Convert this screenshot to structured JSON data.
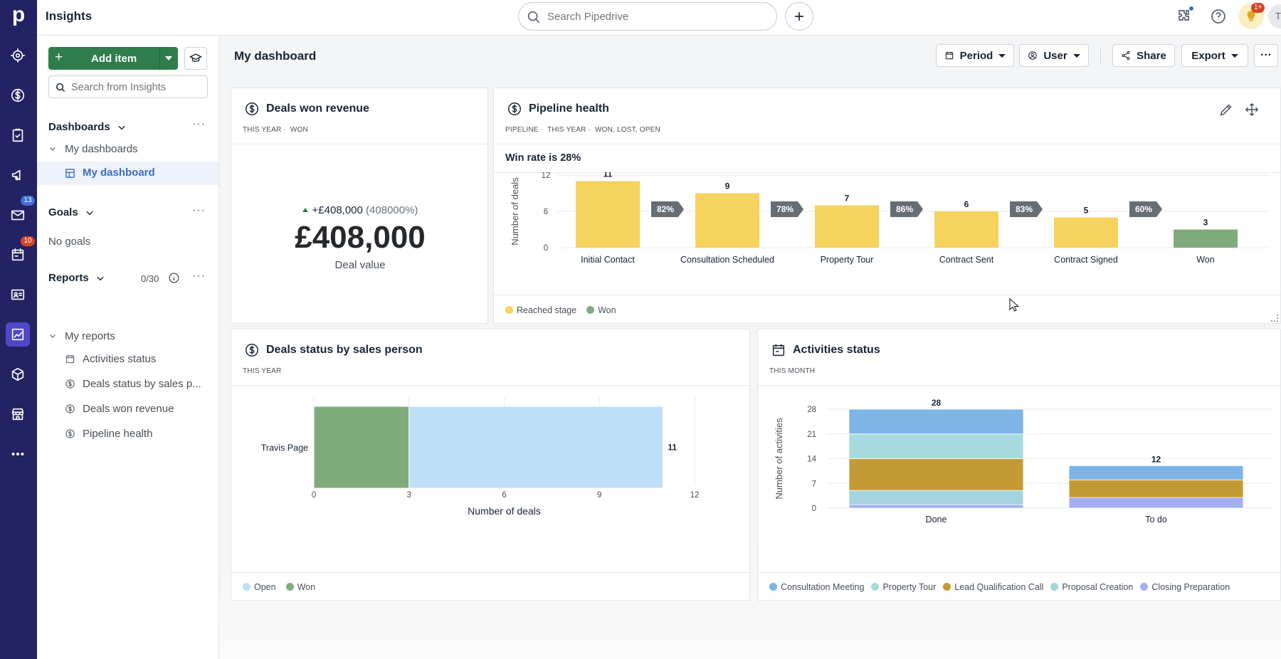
{
  "app": {
    "title": "Insights"
  },
  "rail": {
    "mail_badge": "13",
    "calendar_badge": "10"
  },
  "topbar": {
    "search_placeholder": "Search Pipedrive",
    "notif_badge": "1+",
    "avatar_initials": "TP"
  },
  "sidebar": {
    "add_item": "Add item",
    "search_placeholder": "Search from Insights",
    "dashboards_label": "Dashboards",
    "my_dashboards": "My dashboards",
    "my_dashboard": "My dashboard",
    "goals_label": "Goals",
    "no_goals": "No goals",
    "reports_label": "Reports",
    "reports_count": "0/30",
    "my_reports": "My reports",
    "reports": [
      "Activities status",
      "Deals status by sales p...",
      "Deals won revenue",
      "Pipeline health"
    ]
  },
  "header": {
    "title": "My dashboard",
    "period": "Period",
    "user": "User",
    "share": "Share",
    "export": "Export"
  },
  "deals_won": {
    "title": "Deals won revenue",
    "filter1": "THIS YEAR",
    "filter2": "WON",
    "change": "+£408,000",
    "change_pct": "(408000%)",
    "value": "£408,000",
    "caption": "Deal value"
  },
  "pipeline": {
    "title": "Pipeline health",
    "filters": [
      "PIPELINE",
      "THIS YEAR",
      "WON, LOST, OPEN"
    ],
    "win_rate": "Win rate is 28%",
    "legend": [
      "Reached stage",
      "Won"
    ]
  },
  "deals_status": {
    "title": "Deals status by sales person",
    "filter": "THIS YEAR",
    "legend": [
      "Open",
      "Won"
    ]
  },
  "activities": {
    "title": "Activities status",
    "filter": "THIS MONTH",
    "legend": [
      "Consultation Meeting",
      "Property Tour",
      "Lead Qualification Call",
      "Proposal Creation",
      "Closing Preparation"
    ]
  },
  "colors": {
    "rail": "#232262",
    "accent_green": "#2f7d4b",
    "reached": "#f5d35e",
    "won": "#7fab7d",
    "open": "#bfdff7",
    "active_blue": "#3d6cc6"
  },
  "chart_data": [
    {
      "type": "bar",
      "id": "pipeline",
      "ylabel": "Number of deals",
      "ylim": [
        0,
        12
      ],
      "yticks": [
        0,
        6,
        12
      ],
      "categories": [
        "Initial Contact",
        "Consultation Scheduled",
        "Property Tour",
        "Contract Sent",
        "Contract Signed",
        "Won"
      ],
      "values": [
        11,
        9,
        7,
        6,
        5,
        3
      ],
      "conversion_labels": [
        "82%",
        "78%",
        "86%",
        "83%",
        "60%"
      ],
      "series": [
        {
          "name": "Reached stage"
        },
        {
          "name": "Won"
        }
      ]
    },
    {
      "type": "bar",
      "id": "deals_status",
      "orientation": "horizontal",
      "xlabel": "Number of deals",
      "xlim": [
        0,
        12
      ],
      "xticks": [
        0,
        3,
        6,
        9,
        12
      ],
      "categories": [
        "Travis Page"
      ],
      "total_labels": [
        11
      ],
      "series": [
        {
          "name": "Won",
          "values": [
            3
          ]
        },
        {
          "name": "Open",
          "values": [
            8
          ]
        }
      ]
    },
    {
      "type": "bar",
      "id": "activities",
      "stacked": true,
      "ylabel": "Number of activities",
      "ylim": [
        0,
        28
      ],
      "yticks": [
        0,
        7,
        14,
        21,
        28
      ],
      "categories": [
        "Done",
        "To do"
      ],
      "totals": [
        28,
        12
      ],
      "series": [
        {
          "name": "Closing Preparation",
          "values": [
            1,
            3
          ]
        },
        {
          "name": "Proposal Creation",
          "values": [
            4,
            0
          ]
        },
        {
          "name": "Lead Qualification Call",
          "values": [
            9,
            5
          ]
        },
        {
          "name": "Property Tour",
          "values": [
            7,
            0
          ]
        },
        {
          "name": "Consultation Meeting",
          "values": [
            7,
            4
          ]
        }
      ]
    }
  ]
}
